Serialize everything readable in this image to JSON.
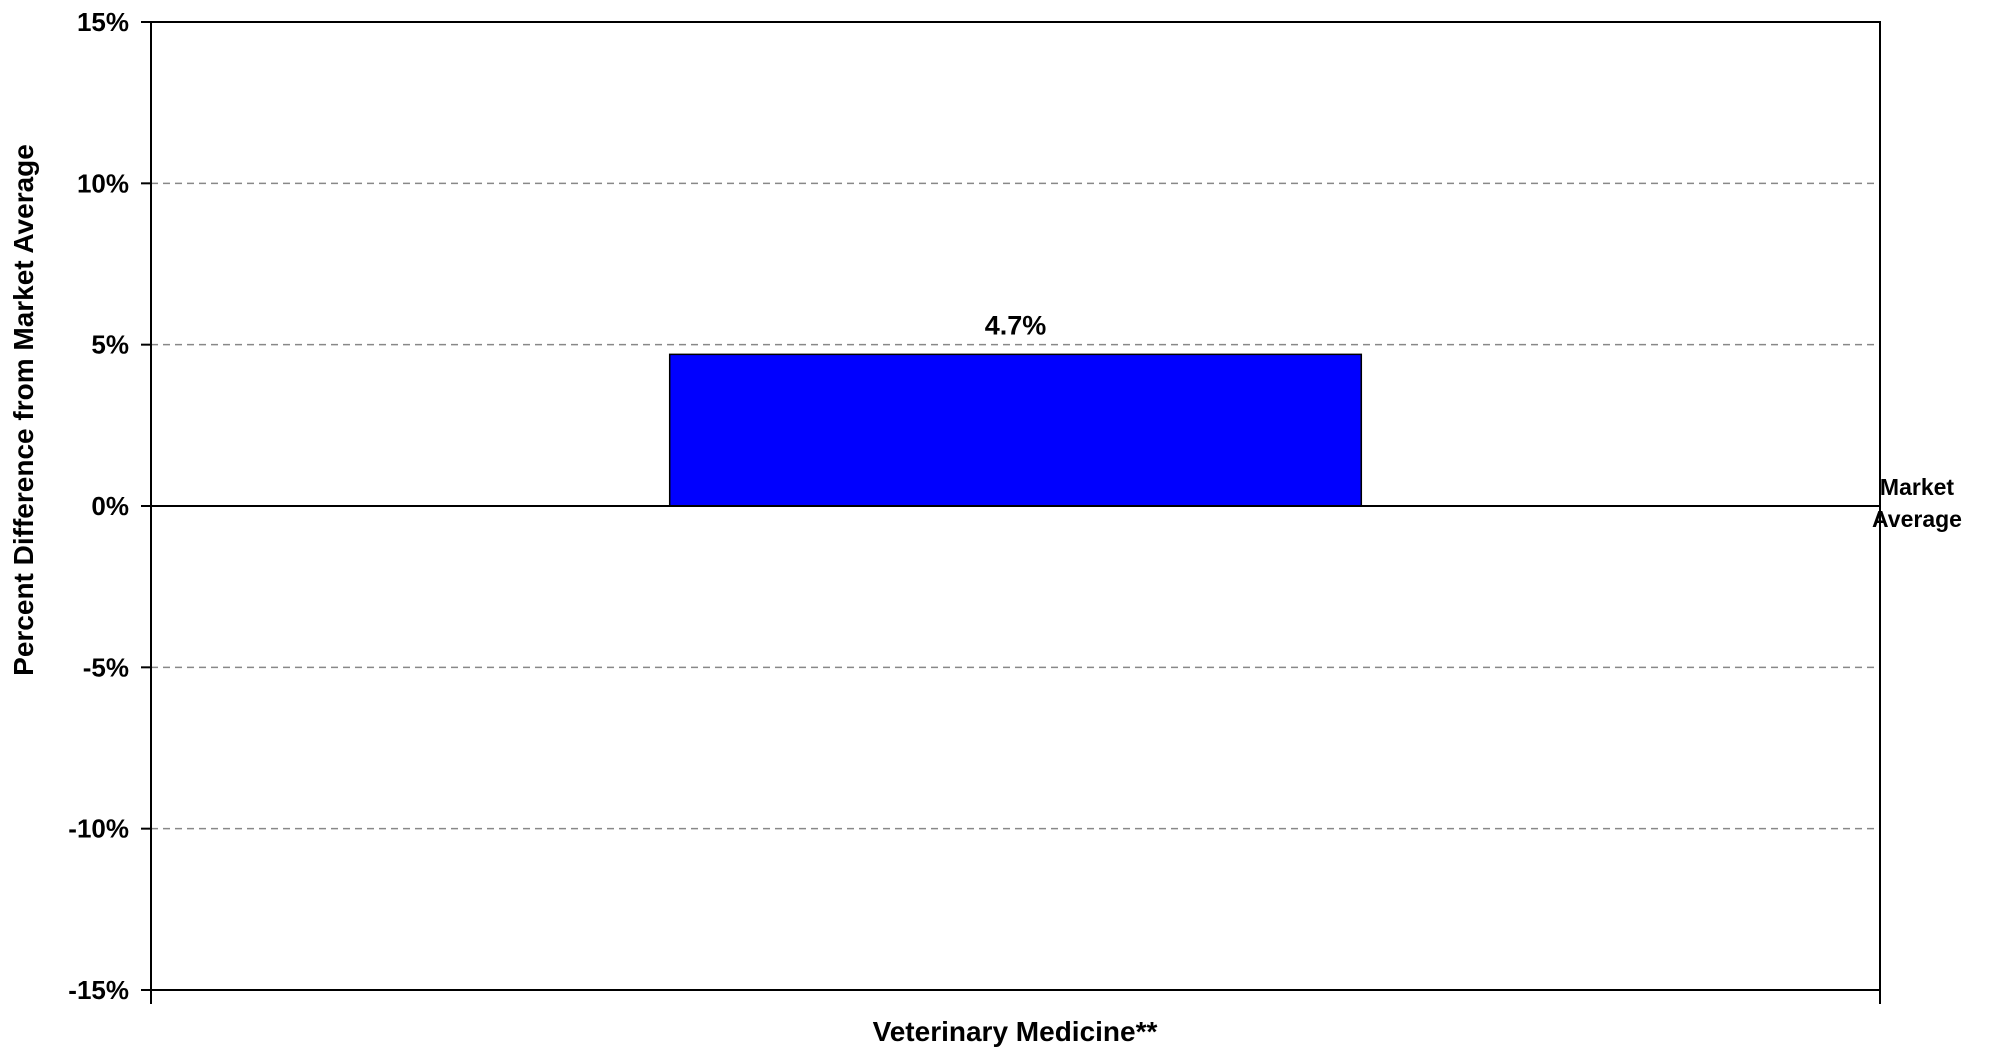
{
  "chart_data": {
    "type": "bar",
    "categories": [
      "Veterinary Medicine**"
    ],
    "values": [
      4.7
    ],
    "value_labels": [
      "4.7%"
    ],
    "xlabel": "Veterinary Medicine**",
    "ylabel": "Percent Difference from Market Average",
    "ylim": [
      -15,
      15
    ],
    "yticks": [
      15,
      10,
      5,
      0,
      -5,
      -10,
      -15
    ],
    "ytick_labels": [
      "15%",
      "10%",
      "5%",
      "0%",
      "-5%",
      "-10%",
      "-15%"
    ],
    "grid": true,
    "grid_style": "dashed",
    "legend": "none",
    "reference_line": {
      "value": 0,
      "label_line1": "Market",
      "label_line2": "Average"
    },
    "colors": {
      "bar": "#0000FF",
      "bar_outline": "#000000",
      "grid": "#888888",
      "axis": "#000000"
    }
  }
}
